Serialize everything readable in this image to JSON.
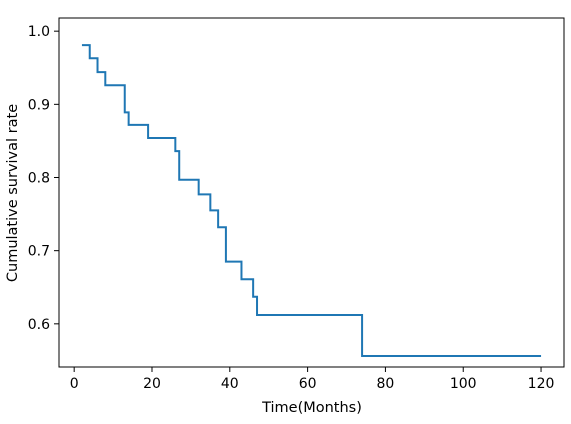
{
  "chart_data": {
    "type": "line",
    "step": "post",
    "title": "",
    "xlabel": "Time(Months)",
    "ylabel": "Cumulative survival rate",
    "xlim": [
      -3.9,
      125.9
    ],
    "ylim": [
      0.541,
      1.018
    ],
    "xticks": [
      0,
      20,
      40,
      60,
      80,
      100,
      120
    ],
    "yticks": [
      0.6,
      0.7,
      0.8,
      0.9,
      1.0
    ],
    "xtick_labels": [
      "0",
      "20",
      "40",
      "60",
      "80",
      "100",
      "120"
    ],
    "ytick_labels": [
      "0.6",
      "0.7",
      "0.8",
      "0.9",
      "1.0"
    ],
    "grid": false,
    "series": [
      {
        "color": "#1f77b4",
        "x": [
          2,
          4,
          6,
          8,
          13,
          14,
          19,
          26,
          27,
          32,
          35,
          37,
          39,
          43,
          46,
          47,
          74,
          120
        ],
        "y": [
          0.981,
          0.963,
          0.944,
          0.926,
          0.889,
          0.872,
          0.854,
          0.836,
          0.797,
          0.777,
          0.755,
          0.732,
          0.685,
          0.661,
          0.637,
          0.612,
          0.556,
          0.556
        ]
      }
    ]
  }
}
